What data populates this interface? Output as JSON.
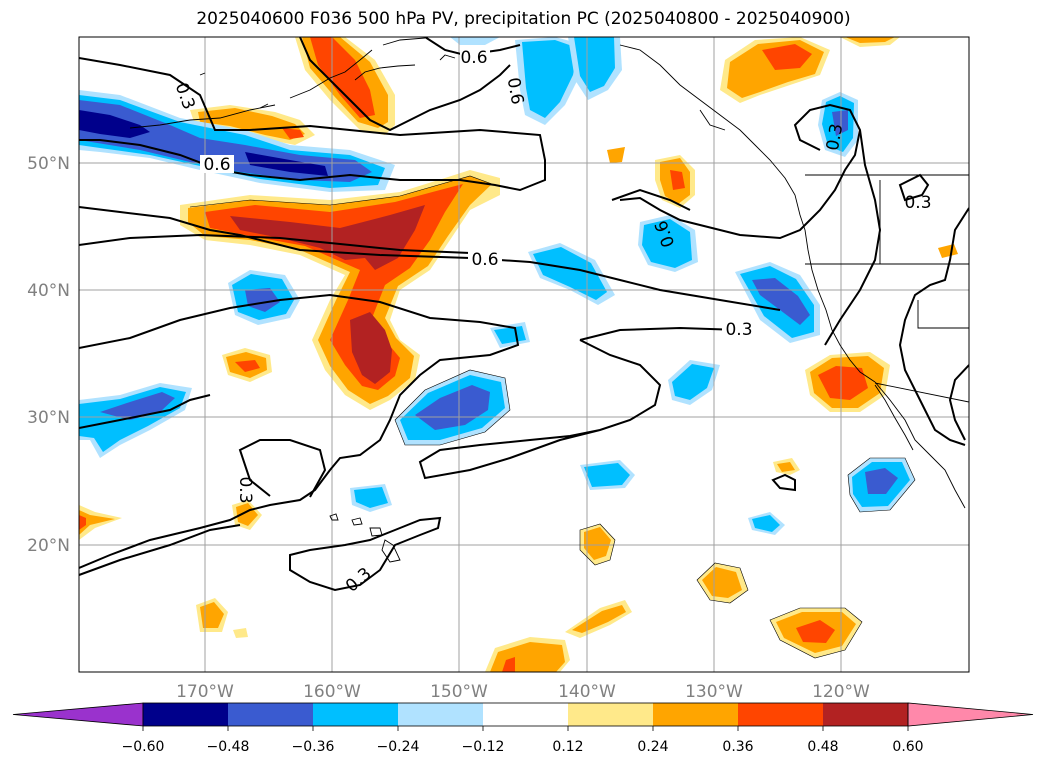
{
  "title": "2025040600 F036 500 hPa PV, precipitation PC (2025040800 - 2025040900)",
  "axes": {
    "lat_labels": [
      "50°N",
      "40°N",
      "30°N",
      "20°N"
    ],
    "lon_labels": [
      "170°W",
      "160°W",
      "150°W",
      "140°W",
      "130°W",
      "120°W"
    ]
  },
  "contour_labels": [
    "0.6",
    "0.6",
    "0.6",
    "0.6",
    "0.3",
    "0.3",
    "0.3",
    "0.3",
    "0.3",
    "0.3",
    "0.6"
  ],
  "colorbar": {
    "tick_labels": [
      "−0.60",
      "−0.48",
      "−0.36",
      "−0.24",
      "−0.12",
      "0.12",
      "0.24",
      "0.36",
      "0.48",
      "0.60"
    ],
    "colors": [
      "#9a32cd",
      "#00008b",
      "#3a5bd0",
      "#00bfff",
      "#b0e2ff",
      "#ffffff",
      "#ffe98a",
      "#ffa500",
      "#ff4500",
      "#b22222",
      "#ff88aa"
    ]
  },
  "fill_colors": {
    "neg_light": "#b0e2ff",
    "neg1": "#00bfff",
    "neg2": "#3a5bd0",
    "neg3": "#00008b",
    "pos_light": "#ffe98a",
    "pos1": "#ffa500",
    "pos2": "#ff4500",
    "pos3": "#b22222"
  }
}
